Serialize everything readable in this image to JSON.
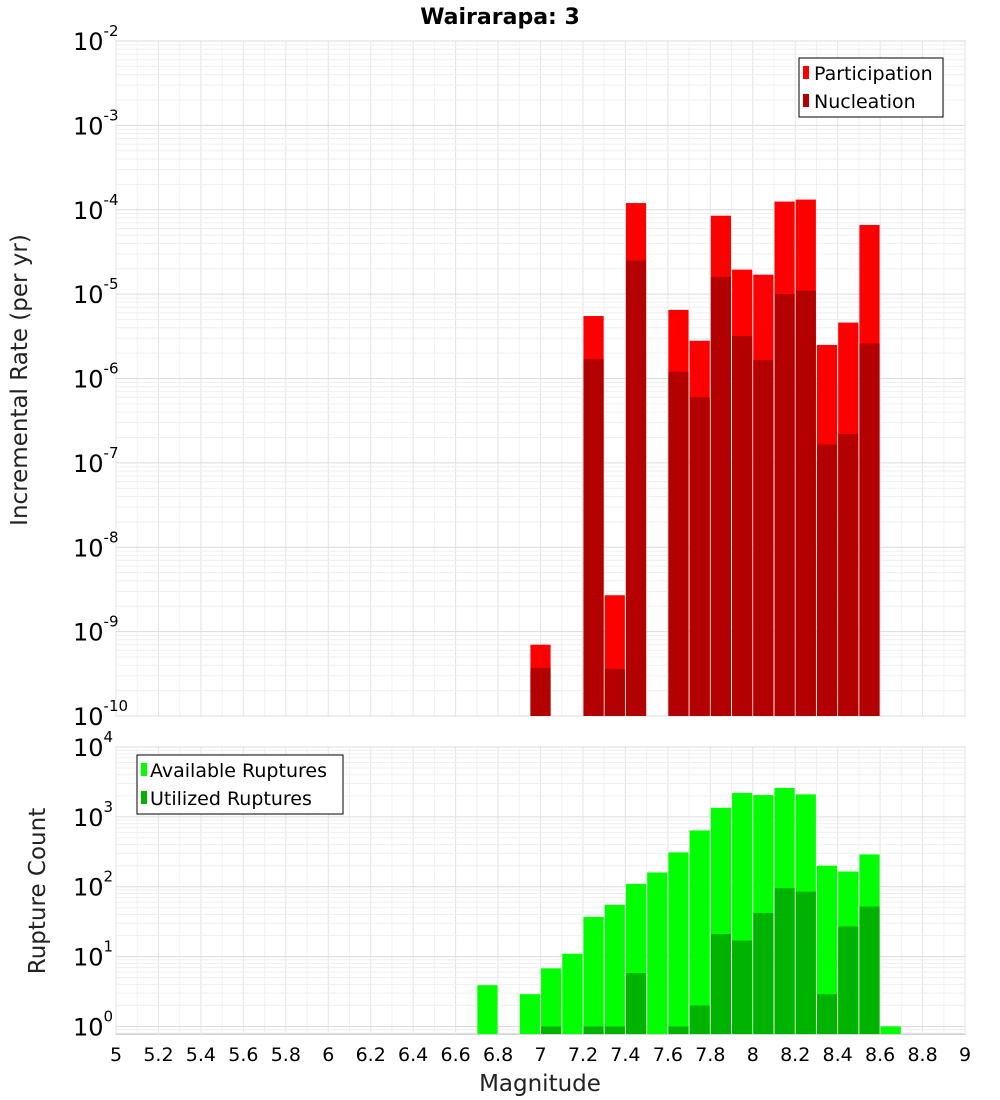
{
  "chart_data": [
    {
      "type": "bar",
      "title": "Wairarapa: 3",
      "ylabel": "Incremental Rate (per yr)",
      "xlabel": "",
      "y_scale": "log",
      "xlim": [
        5,
        9
      ],
      "ylim": [
        1e-10,
        0.01
      ],
      "y_ticks": [
        {
          "base": "10",
          "exp": "-10"
        },
        {
          "base": "10",
          "exp": "-9"
        },
        {
          "base": "10",
          "exp": "-8"
        },
        {
          "base": "10",
          "exp": "-7"
        },
        {
          "base": "10",
          "exp": "-6"
        },
        {
          "base": "10",
          "exp": "-5"
        },
        {
          "base": "10",
          "exp": "-4"
        },
        {
          "base": "10",
          "exp": "-3"
        },
        {
          "base": "10",
          "exp": "-2"
        }
      ],
      "grid": true,
      "legend_placement": "top-right",
      "series": [
        {
          "name": "Participation",
          "color": "#ff0000",
          "x": [
            7.0,
            7.25,
            7.35,
            7.45,
            7.65,
            7.75,
            7.85,
            7.95,
            8.05,
            8.15,
            8.25,
            8.35,
            8.45,
            8.55
          ],
          "values": [
            7e-10,
            5.5e-06,
            2.7e-09,
            0.00012,
            6.5e-06,
            2.8e-06,
            8.5e-05,
            1.95e-05,
            1.7e-05,
            0.000125,
            0.000132,
            2.5e-06,
            4.6e-06,
            6.6e-05
          ]
        },
        {
          "name": "Nucleation",
          "color": "#b30000",
          "x": [
            7.0,
            7.25,
            7.35,
            7.45,
            7.65,
            7.75,
            7.85,
            7.95,
            8.05,
            8.15,
            8.25,
            8.35,
            8.45,
            8.55
          ],
          "values": [
            3.7e-10,
            1.7e-06,
            3.6e-10,
            2.5e-05,
            1.2e-06,
            6e-07,
            1.6e-05,
            3.2e-06,
            1.65e-06,
            1e-05,
            1.1e-05,
            1.65e-07,
            2.2e-07,
            2.6e-06
          ]
        }
      ]
    },
    {
      "type": "bar",
      "title": "",
      "ylabel": "Rupture Count",
      "xlabel": "Magnitude",
      "y_scale": "log",
      "xlim": [
        5,
        9
      ],
      "ylim": [
        0.78,
        10000
      ],
      "x_ticks": [
        "5",
        "5.2",
        "5.4",
        "5.6",
        "5.8",
        "6",
        "6.2",
        "6.4",
        "6.6",
        "6.8",
        "7",
        "7.2",
        "7.4",
        "7.6",
        "7.8",
        "8",
        "8.2",
        "8.4",
        "8.6",
        "8.8",
        "9"
      ],
      "y_ticks": [
        {
          "base": "10",
          "exp": "0"
        },
        {
          "base": "10",
          "exp": "1"
        },
        {
          "base": "10",
          "exp": "2"
        },
        {
          "base": "10",
          "exp": "3"
        },
        {
          "base": "10",
          "exp": "4"
        }
      ],
      "grid": true,
      "legend_placement": "top-left",
      "series": [
        {
          "name": "Available Ruptures",
          "color": "#00ff00",
          "x": [
            6.75,
            6.95,
            7.05,
            7.15,
            7.25,
            7.35,
            7.45,
            7.55,
            7.65,
            7.75,
            7.85,
            7.95,
            8.05,
            8.15,
            8.25,
            8.35,
            8.45,
            8.55,
            8.65
          ],
          "values": [
            3.9,
            2.9,
            6.8,
            11,
            37,
            55,
            110,
            160,
            310,
            640,
            1350,
            2200,
            2050,
            2600,
            2100,
            200,
            165,
            290,
            1
          ]
        },
        {
          "name": "Utilized Ruptures",
          "color": "#00b300",
          "x": [
            7.05,
            7.25,
            7.35,
            7.45,
            7.65,
            7.75,
            7.85,
            7.95,
            8.05,
            8.15,
            8.25,
            8.35,
            8.45,
            8.55
          ],
          "values": [
            1,
            1,
            1,
            5.8,
            1,
            2,
            21,
            17,
            42,
            95,
            85,
            2.9,
            27,
            52
          ]
        }
      ]
    }
  ]
}
